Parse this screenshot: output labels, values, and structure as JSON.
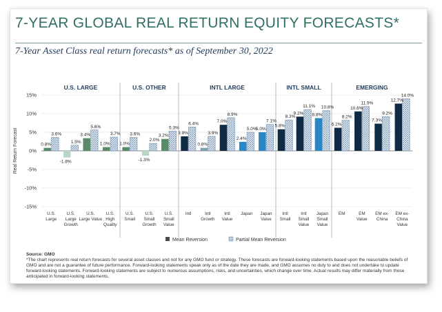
{
  "title": "7-YEAR GLOBAL REAL RETURN EQUITY FORECASTS*",
  "subtitle": "7-Year Asset Class real return forecasts* as of September 30, 2022",
  "source": "Source: GMO",
  "footnote": "*The chart represents real return forecasts for several asset classes and not for any GMO fund or strategy. These forecasts are forward-looking statements based upon the reasonable beliefs of GMO and are not a guarantee of future performance. Forward-looking statements speak only as of the date they are made, and GMO assumes no duty to and does not undertake to update forward-looking statements. Forward-looking statements are subject to numerous assumptions, risks, and uncertainties, which change over time. Actual results may differ materially from those anticipated in forward-looking statements.",
  "colors": {
    "title": "#2f6f63",
    "navy": "#1f3b5b",
    "mean_large": "#5a8a68",
    "mean_large_light": "#b9d7c4",
    "mean_intl": "#0f2a45",
    "mean_intl_light": "#7fa2b0",
    "mean_japan": "#2a86c4",
    "partial_hatch": "#6e8fb0"
  },
  "chart_data": {
    "type": "bar",
    "ylabel": "Real Return Forecast",
    "ylim": [
      -15,
      15
    ],
    "yticks": [
      "15%",
      "10%",
      "5%",
      "0%",
      "-5%",
      "-10%",
      "-15%"
    ],
    "groups": [
      {
        "name": "U.S. LARGE",
        "categories": [
          "U.S. Large",
          "U.S. Large Growth",
          "U.S. Large Value",
          "U.S. High Quality"
        ]
      },
      {
        "name": "U.S. OTHER",
        "categories": [
          "U.S. Small",
          "U.S. Small Growth",
          "U.S. Small Value"
        ]
      },
      {
        "name": "INTL LARGE",
        "categories": [
          "Intl",
          "Intl Growth",
          "Intl Value",
          "Japan",
          "Japan Value"
        ]
      },
      {
        "name": "INTL SMALL",
        "categories": [
          "Intl Small",
          "Intl Small Value",
          "Japan Small Value"
        ]
      },
      {
        "name": "EMERGING",
        "categories": [
          "EM",
          "EM Value",
          "EM ex-China",
          "EM ex-China Value"
        ]
      }
    ],
    "series": [
      {
        "name": "Mean Reversion",
        "values": [
          0.8,
          -1.8,
          3.4,
          1.0,
          1.0,
          -1.3,
          3.2,
          3.9,
          0.8,
          7.0,
          2.4,
          5.0,
          5.8,
          9.2,
          8.8,
          6.2,
          10.6,
          7.3,
          12.7
        ]
      },
      {
        "name": "Partial Mean Reversion",
        "values": [
          3.6,
          1.5,
          5.6,
          3.7,
          3.6,
          2.0,
          5.3,
          6.4,
          3.9,
          8.9,
          5.0,
          7.1,
          8.3,
          11.1,
          10.8,
          8.2,
          11.9,
          9.2,
          14.0
        ]
      }
    ],
    "value_labels": {
      "mean": [
        "0.8%",
        "-1.8%",
        "3.4%",
        "1.0%",
        "1.0%",
        "-1.3%",
        "3.2%",
        "3.9%",
        "0.8%",
        "7.0%",
        "2.4%",
        "5.0%",
        "5.8%",
        "9.2%",
        "8.8%",
        "6.2%",
        "10.6%",
        "7.3%",
        "12.7%"
      ],
      "partial": [
        "3.6%",
        "1.5%",
        "5.6%",
        "3.7%",
        "3.6%",
        "2.0%",
        "5.3%",
        "6.4%",
        "3.9%",
        "8.9%",
        "5.0%",
        "7.1%",
        "8.3%",
        "11.1%",
        "10.8%",
        "8.2%",
        "11.9%",
        "9.2%",
        "14.0%"
      ]
    },
    "tick_labels": [
      [
        "U.S.",
        "Large"
      ],
      [
        "U.S.",
        "Large",
        "Growth"
      ],
      [
        "U.S.",
        "Large Value"
      ],
      [
        "U.S.",
        "High",
        "Quality"
      ],
      [
        "U.S.",
        "Small"
      ],
      [
        "U.S.",
        "Small",
        "Growth"
      ],
      [
        "U.S.",
        "Small",
        "Value"
      ],
      [
        "Intl"
      ],
      [
        "Intl",
        "Growth"
      ],
      [
        "Intl",
        "Value"
      ],
      [
        "Japan"
      ],
      [
        "Japan",
        "Value"
      ],
      [
        "Intl",
        "Small"
      ],
      [
        "Intl",
        "Small",
        "Value"
      ],
      [
        "Japan",
        "Small",
        "Value"
      ],
      [
        "EM"
      ],
      [
        "EM",
        "Value"
      ],
      [
        "EM ex-",
        "China"
      ],
      [
        "EM ex-",
        "China",
        "Value"
      ]
    ],
    "legend": {
      "position": "bottom",
      "entries": [
        "Mean Reversion",
        "Partial Mean Reversion"
      ]
    },
    "grid": true
  }
}
